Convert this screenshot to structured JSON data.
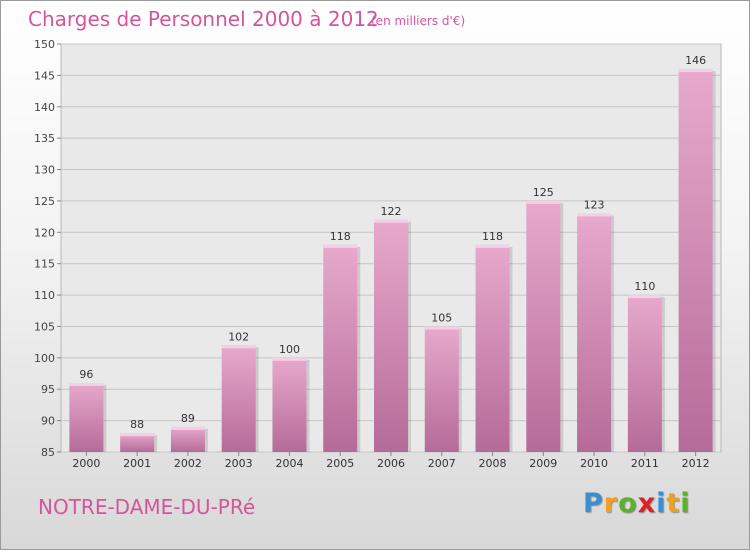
{
  "header": {
    "title": "Charges de Personnel 2000 à 2012",
    "subtitle": "(en milliers d'€)"
  },
  "footer": {
    "commune": "NOTRE-DAME-DU-PRé",
    "logo": {
      "letters": [
        "P",
        "r",
        "o",
        "x",
        "i",
        "t",
        "i"
      ],
      "colors": [
        "#3a8fd0",
        "#f0a020",
        "#5cb030",
        "#e02020",
        "#3a8fd0",
        "#f0a020",
        "#5cb030"
      ]
    }
  },
  "chart_data": {
    "type": "bar",
    "categories": [
      "2000",
      "2001",
      "2002",
      "2003",
      "2004",
      "2005",
      "2006",
      "2007",
      "2008",
      "2009",
      "2010",
      "2011",
      "2012"
    ],
    "values": [
      96,
      88,
      89,
      102,
      100,
      118,
      122,
      105,
      118,
      125,
      123,
      110,
      146
    ],
    "data_labels": [
      "96",
      "88",
      "89",
      "102",
      "100",
      "118",
      "122",
      "105",
      "118",
      "125",
      "123",
      "110",
      "146"
    ],
    "title": "Charges de Personnel 2000 à 2012",
    "ylim": [
      85,
      150
    ],
    "yticks": [
      "85",
      "90",
      "95",
      "100",
      "105",
      "110",
      "115",
      "120",
      "125",
      "130",
      "135",
      "140",
      "145",
      "150"
    ],
    "grid": true,
    "bar_color": "#cc7fae",
    "text_color": "#d4559a"
  }
}
